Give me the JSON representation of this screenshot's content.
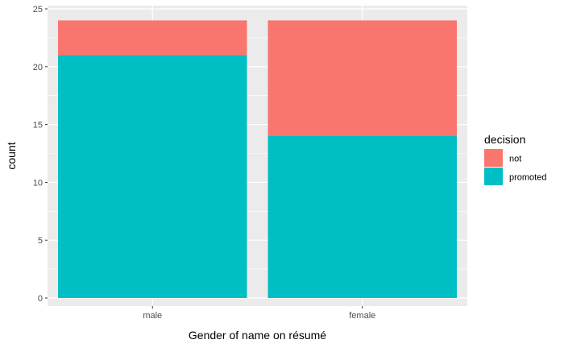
{
  "chart_data": {
    "type": "bar",
    "stacked": true,
    "categories": [
      "male",
      "female"
    ],
    "series": [
      {
        "name": "not",
        "values": [
          3,
          10
        ],
        "color": "#F8766D"
      },
      {
        "name": "promoted",
        "values": [
          21,
          14
        ],
        "color": "#00BFC4"
      }
    ],
    "xlabel": "Gender of name on résumé",
    "ylabel": "count",
    "ylim": [
      0,
      25
    ],
    "yticks": [
      0,
      5,
      10,
      15,
      20,
      25
    ],
    "legend": {
      "title": "decision",
      "placement": "right"
    },
    "grid": true,
    "panel_background": "#EBEBEB",
    "gridline_color": "#FFFFFF"
  }
}
